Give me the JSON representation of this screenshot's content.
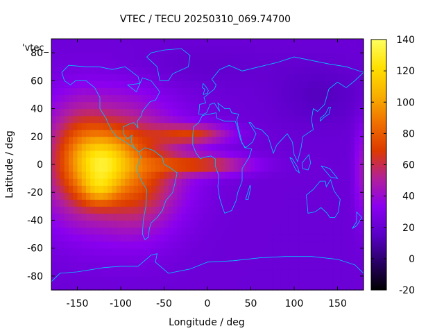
{
  "chart_data": {
    "type": "heatmap",
    "title": "VTEC / TECU 20250310_069.74700",
    "xlabel": "Longitude / deg",
    "ylabel": "Latitude / deg",
    "key_label": "'vtec_",
    "xlim": [
      -180,
      180
    ],
    "ylim": [
      -90,
      90
    ],
    "xticks": [
      -150,
      -100,
      -50,
      0,
      50,
      100,
      150
    ],
    "yticks": [
      -80,
      -60,
      -40,
      -20,
      0,
      20,
      40,
      60,
      80
    ],
    "colorbar": {
      "range": [
        -20,
        140
      ],
      "ticks": [
        -20,
        0,
        20,
        40,
        60,
        80,
        100,
        120,
        140
      ],
      "palette": [
        "#000000",
        "#2a0066",
        "#5a00c8",
        "#8a00f0",
        "#b2209a",
        "#dc3a00",
        "#f07000",
        "#f8b000",
        "#ffe000",
        "#ffff60"
      ]
    },
    "background_vtec": 22,
    "blobs": [
      {
        "lon": -115,
        "lat": 2,
        "sigma_lon": 55,
        "sigma_lat": 32,
        "vtec": 52
      },
      {
        "lon": -120,
        "lat": 2,
        "sigma_lon": 22,
        "sigma_lat": 14,
        "vtec": 45
      },
      {
        "lon": -125,
        "lat": -18,
        "sigma_lon": 14,
        "sigma_lat": 8,
        "vtec": 25
      },
      {
        "lon": -150,
        "lat": 5,
        "sigma_lon": 20,
        "sigma_lat": 25,
        "vtec": 20
      },
      {
        "lon": -75,
        "lat": -15,
        "sigma_lon": 30,
        "sigma_lat": 25,
        "vtec": 18
      },
      {
        "lon": -5,
        "lat": 0,
        "sigma_lon": 40,
        "sigma_lat": 5,
        "vtec": 40
      },
      {
        "lon": -15,
        "lat": 22,
        "sigma_lon": 30,
        "sigma_lat": 5,
        "vtec": 38
      },
      {
        "lon": 178,
        "lat": -5,
        "sigma_lon": 6,
        "sigma_lat": 25,
        "vtec": 20
      },
      {
        "lon": 130,
        "lat": 50,
        "sigma_lon": 35,
        "sigma_lat": 15,
        "vtec": -8
      },
      {
        "lon": -20,
        "lat": 70,
        "sigma_lon": 70,
        "sigma_lat": 10,
        "vtec": -4
      }
    ],
    "coastlines": [
      {
        "name": "north-america",
        "points": [
          [
            -168,
            66
          ],
          [
            -160,
            71
          ],
          [
            -140,
            70
          ],
          [
            -125,
            70
          ],
          [
            -110,
            68
          ],
          [
            -95,
            70
          ],
          [
            -80,
            63
          ],
          [
            -78,
            58
          ],
          [
            -92,
            57
          ],
          [
            -82,
            52
          ],
          [
            -75,
            62
          ],
          [
            -65,
            60
          ],
          [
            -55,
            52
          ],
          [
            -60,
            46
          ],
          [
            -66,
            45
          ],
          [
            -70,
            42
          ],
          [
            -75,
            38
          ],
          [
            -76,
            35
          ],
          [
            -81,
            31
          ],
          [
            -80,
            26
          ],
          [
            -82,
            28
          ],
          [
            -85,
            30
          ],
          [
            -90,
            29
          ],
          [
            -97,
            27
          ],
          [
            -97,
            22
          ],
          [
            -92,
            18
          ],
          [
            -87,
            21
          ],
          [
            -88,
            16
          ],
          [
            -83,
            11
          ],
          [
            -79,
            9
          ],
          [
            -85,
            12
          ],
          [
            -92,
            15
          ],
          [
            -105,
            20
          ],
          [
            -110,
            24
          ],
          [
            -115,
            30
          ],
          [
            -117,
            33
          ],
          [
            -124,
            40
          ],
          [
            -124,
            48
          ],
          [
            -130,
            55
          ],
          [
            -140,
            60
          ],
          [
            -152,
            60
          ],
          [
            -158,
            57
          ],
          [
            -165,
            60
          ],
          [
            -168,
            66
          ]
        ]
      },
      {
        "name": "greenland",
        "points": [
          [
            -55,
            60
          ],
          [
            -45,
            60
          ],
          [
            -40,
            65
          ],
          [
            -22,
            70
          ],
          [
            -20,
            78
          ],
          [
            -30,
            83
          ],
          [
            -50,
            82
          ],
          [
            -65,
            80
          ],
          [
            -70,
            77
          ],
          [
            -58,
            70
          ],
          [
            -55,
            60
          ]
        ]
      },
      {
        "name": "south-america",
        "points": [
          [
            -79,
            9
          ],
          [
            -72,
            12
          ],
          [
            -62,
            10
          ],
          [
            -52,
            5
          ],
          [
            -50,
            0
          ],
          [
            -44,
            -2
          ],
          [
            -35,
            -6
          ],
          [
            -37,
            -12
          ],
          [
            -40,
            -20
          ],
          [
            -48,
            -26
          ],
          [
            -52,
            -33
          ],
          [
            -58,
            -38
          ],
          [
            -65,
            -42
          ],
          [
            -67,
            -46
          ],
          [
            -68,
            -52
          ],
          [
            -72,
            -54
          ],
          [
            -75,
            -50
          ],
          [
            -74,
            -40
          ],
          [
            -71,
            -30
          ],
          [
            -70,
            -18
          ],
          [
            -76,
            -12
          ],
          [
            -81,
            -5
          ],
          [
            -80,
            0
          ],
          [
            -77,
            5
          ],
          [
            -79,
            9
          ]
        ]
      },
      {
        "name": "eurasia",
        "points": [
          [
            -10,
            36
          ],
          [
            -9,
            43
          ],
          [
            -2,
            44
          ],
          [
            -4,
            48
          ],
          [
            2,
            51
          ],
          [
            8,
            54
          ],
          [
            10,
            57
          ],
          [
            5,
            61
          ],
          [
            14,
            68
          ],
          [
            25,
            71
          ],
          [
            40,
            67
          ],
          [
            60,
            70
          ],
          [
            80,
            73
          ],
          [
            100,
            77
          ],
          [
            140,
            72
          ],
          [
            160,
            70
          ],
          [
            180,
            66
          ],
          [
            170,
            60
          ],
          [
            160,
            55
          ],
          [
            150,
            59
          ],
          [
            140,
            54
          ],
          [
            135,
            43
          ],
          [
            127,
            38
          ],
          [
            122,
            40
          ],
          [
            120,
            32
          ],
          [
            122,
            25
          ],
          [
            110,
            20
          ],
          [
            108,
            12
          ],
          [
            104,
            2
          ],
          [
            100,
            7
          ],
          [
            98,
            16
          ],
          [
            92,
            22
          ],
          [
            80,
            14
          ],
          [
            76,
            8
          ],
          [
            70,
            20
          ],
          [
            62,
            25
          ],
          [
            55,
            26
          ],
          [
            50,
            30
          ],
          [
            48,
            30
          ],
          [
            56,
            22
          ],
          [
            52,
            16
          ],
          [
            44,
            12
          ],
          [
            40,
            15
          ],
          [
            35,
            28
          ],
          [
            34,
            32
          ],
          [
            36,
            36
          ],
          [
            28,
            37
          ],
          [
            26,
            40
          ],
          [
            20,
            40
          ],
          [
            12,
            44
          ],
          [
            14,
            38
          ],
          [
            8,
            44
          ],
          [
            3,
            43
          ],
          [
            -1,
            37
          ],
          [
            -5,
            36
          ],
          [
            -10,
            36
          ]
        ]
      },
      {
        "name": "africa",
        "points": [
          [
            -17,
            21
          ],
          [
            -16,
            27
          ],
          [
            -10,
            30
          ],
          [
            -6,
            35
          ],
          [
            10,
            37
          ],
          [
            11,
            33
          ],
          [
            20,
            31
          ],
          [
            32,
            31
          ],
          [
            34,
            28
          ],
          [
            38,
            18
          ],
          [
            43,
            12
          ],
          [
            51,
            11
          ],
          [
            48,
            5
          ],
          [
            40,
            -3
          ],
          [
            40,
            -12
          ],
          [
            35,
            -20
          ],
          [
            33,
            -26
          ],
          [
            28,
            -33
          ],
          [
            20,
            -35
          ],
          [
            18,
            -32
          ],
          [
            14,
            -24
          ],
          [
            12,
            -16
          ],
          [
            13,
            -8
          ],
          [
            9,
            -1
          ],
          [
            9,
            4
          ],
          [
            4,
            6
          ],
          [
            -5,
            5
          ],
          [
            -8,
            4
          ],
          [
            -13,
            8
          ],
          [
            -17,
            14
          ],
          [
            -17,
            21
          ]
        ]
      },
      {
        "name": "australia",
        "points": [
          [
            114,
            -22
          ],
          [
            122,
            -18
          ],
          [
            130,
            -12
          ],
          [
            136,
            -12
          ],
          [
            137,
            -16
          ],
          [
            142,
            -11
          ],
          [
            146,
            -19
          ],
          [
            153,
            -25
          ],
          [
            151,
            -34
          ],
          [
            147,
            -38
          ],
          [
            141,
            -38
          ],
          [
            138,
            -35
          ],
          [
            131,
            -31
          ],
          [
            124,
            -34
          ],
          [
            116,
            -35
          ],
          [
            114,
            -22
          ]
        ]
      },
      {
        "name": "madagascar",
        "points": [
          [
            44,
            -25
          ],
          [
            49,
            -15
          ],
          [
            50,
            -16
          ],
          [
            47,
            -25
          ],
          [
            44,
            -25
          ]
        ]
      },
      {
        "name": "uk",
        "points": [
          [
            -5,
            50
          ],
          [
            0,
            51
          ],
          [
            1,
            53
          ],
          [
            -2,
            56
          ],
          [
            -5,
            58
          ],
          [
            -6,
            55
          ],
          [
            -3,
            54
          ],
          [
            -5,
            50
          ]
        ]
      },
      {
        "name": "japan",
        "points": [
          [
            130,
            31
          ],
          [
            135,
            34
          ],
          [
            140,
            36
          ],
          [
            142,
            41
          ],
          [
            140,
            41
          ],
          [
            136,
            36
          ],
          [
            130,
            33
          ],
          [
            130,
            31
          ]
        ]
      },
      {
        "name": "new-zealand",
        "points": [
          [
            172,
            -34
          ],
          [
            178,
            -38
          ],
          [
            175,
            -41
          ],
          [
            172,
            -44
          ],
          [
            167,
            -46
          ],
          [
            172,
            -41
          ],
          [
            172,
            -34
          ]
        ]
      },
      {
        "name": "borneo",
        "points": [
          [
            109,
            1
          ],
          [
            117,
            7
          ],
          [
            119,
            1
          ],
          [
            116,
            -4
          ],
          [
            110,
            -3
          ],
          [
            109,
            1
          ]
        ]
      },
      {
        "name": "sumatra",
        "points": [
          [
            95,
            5
          ],
          [
            98,
            4
          ],
          [
            104,
            -2
          ],
          [
            106,
            -6
          ],
          [
            102,
            -4
          ],
          [
            95,
            5
          ]
        ]
      },
      {
        "name": "new-guinea",
        "points": [
          [
            131,
            -1
          ],
          [
            141,
            -3
          ],
          [
            150,
            -10
          ],
          [
            142,
            -9
          ],
          [
            135,
            -4
          ],
          [
            131,
            -1
          ]
        ]
      },
      {
        "name": "antarctica",
        "points": [
          [
            -180,
            -84
          ],
          [
            -170,
            -78
          ],
          [
            -150,
            -77
          ],
          [
            -120,
            -74
          ],
          [
            -100,
            -73
          ],
          [
            -80,
            -73
          ],
          [
            -65,
            -65
          ],
          [
            -58,
            -64
          ],
          [
            -60,
            -70
          ],
          [
            -45,
            -78
          ],
          [
            -20,
            -75
          ],
          [
            0,
            -70
          ],
          [
            30,
            -69
          ],
          [
            60,
            -67
          ],
          [
            90,
            -66
          ],
          [
            120,
            -66
          ],
          [
            150,
            -68
          ],
          [
            170,
            -72
          ],
          [
            180,
            -78
          ]
        ]
      }
    ]
  }
}
